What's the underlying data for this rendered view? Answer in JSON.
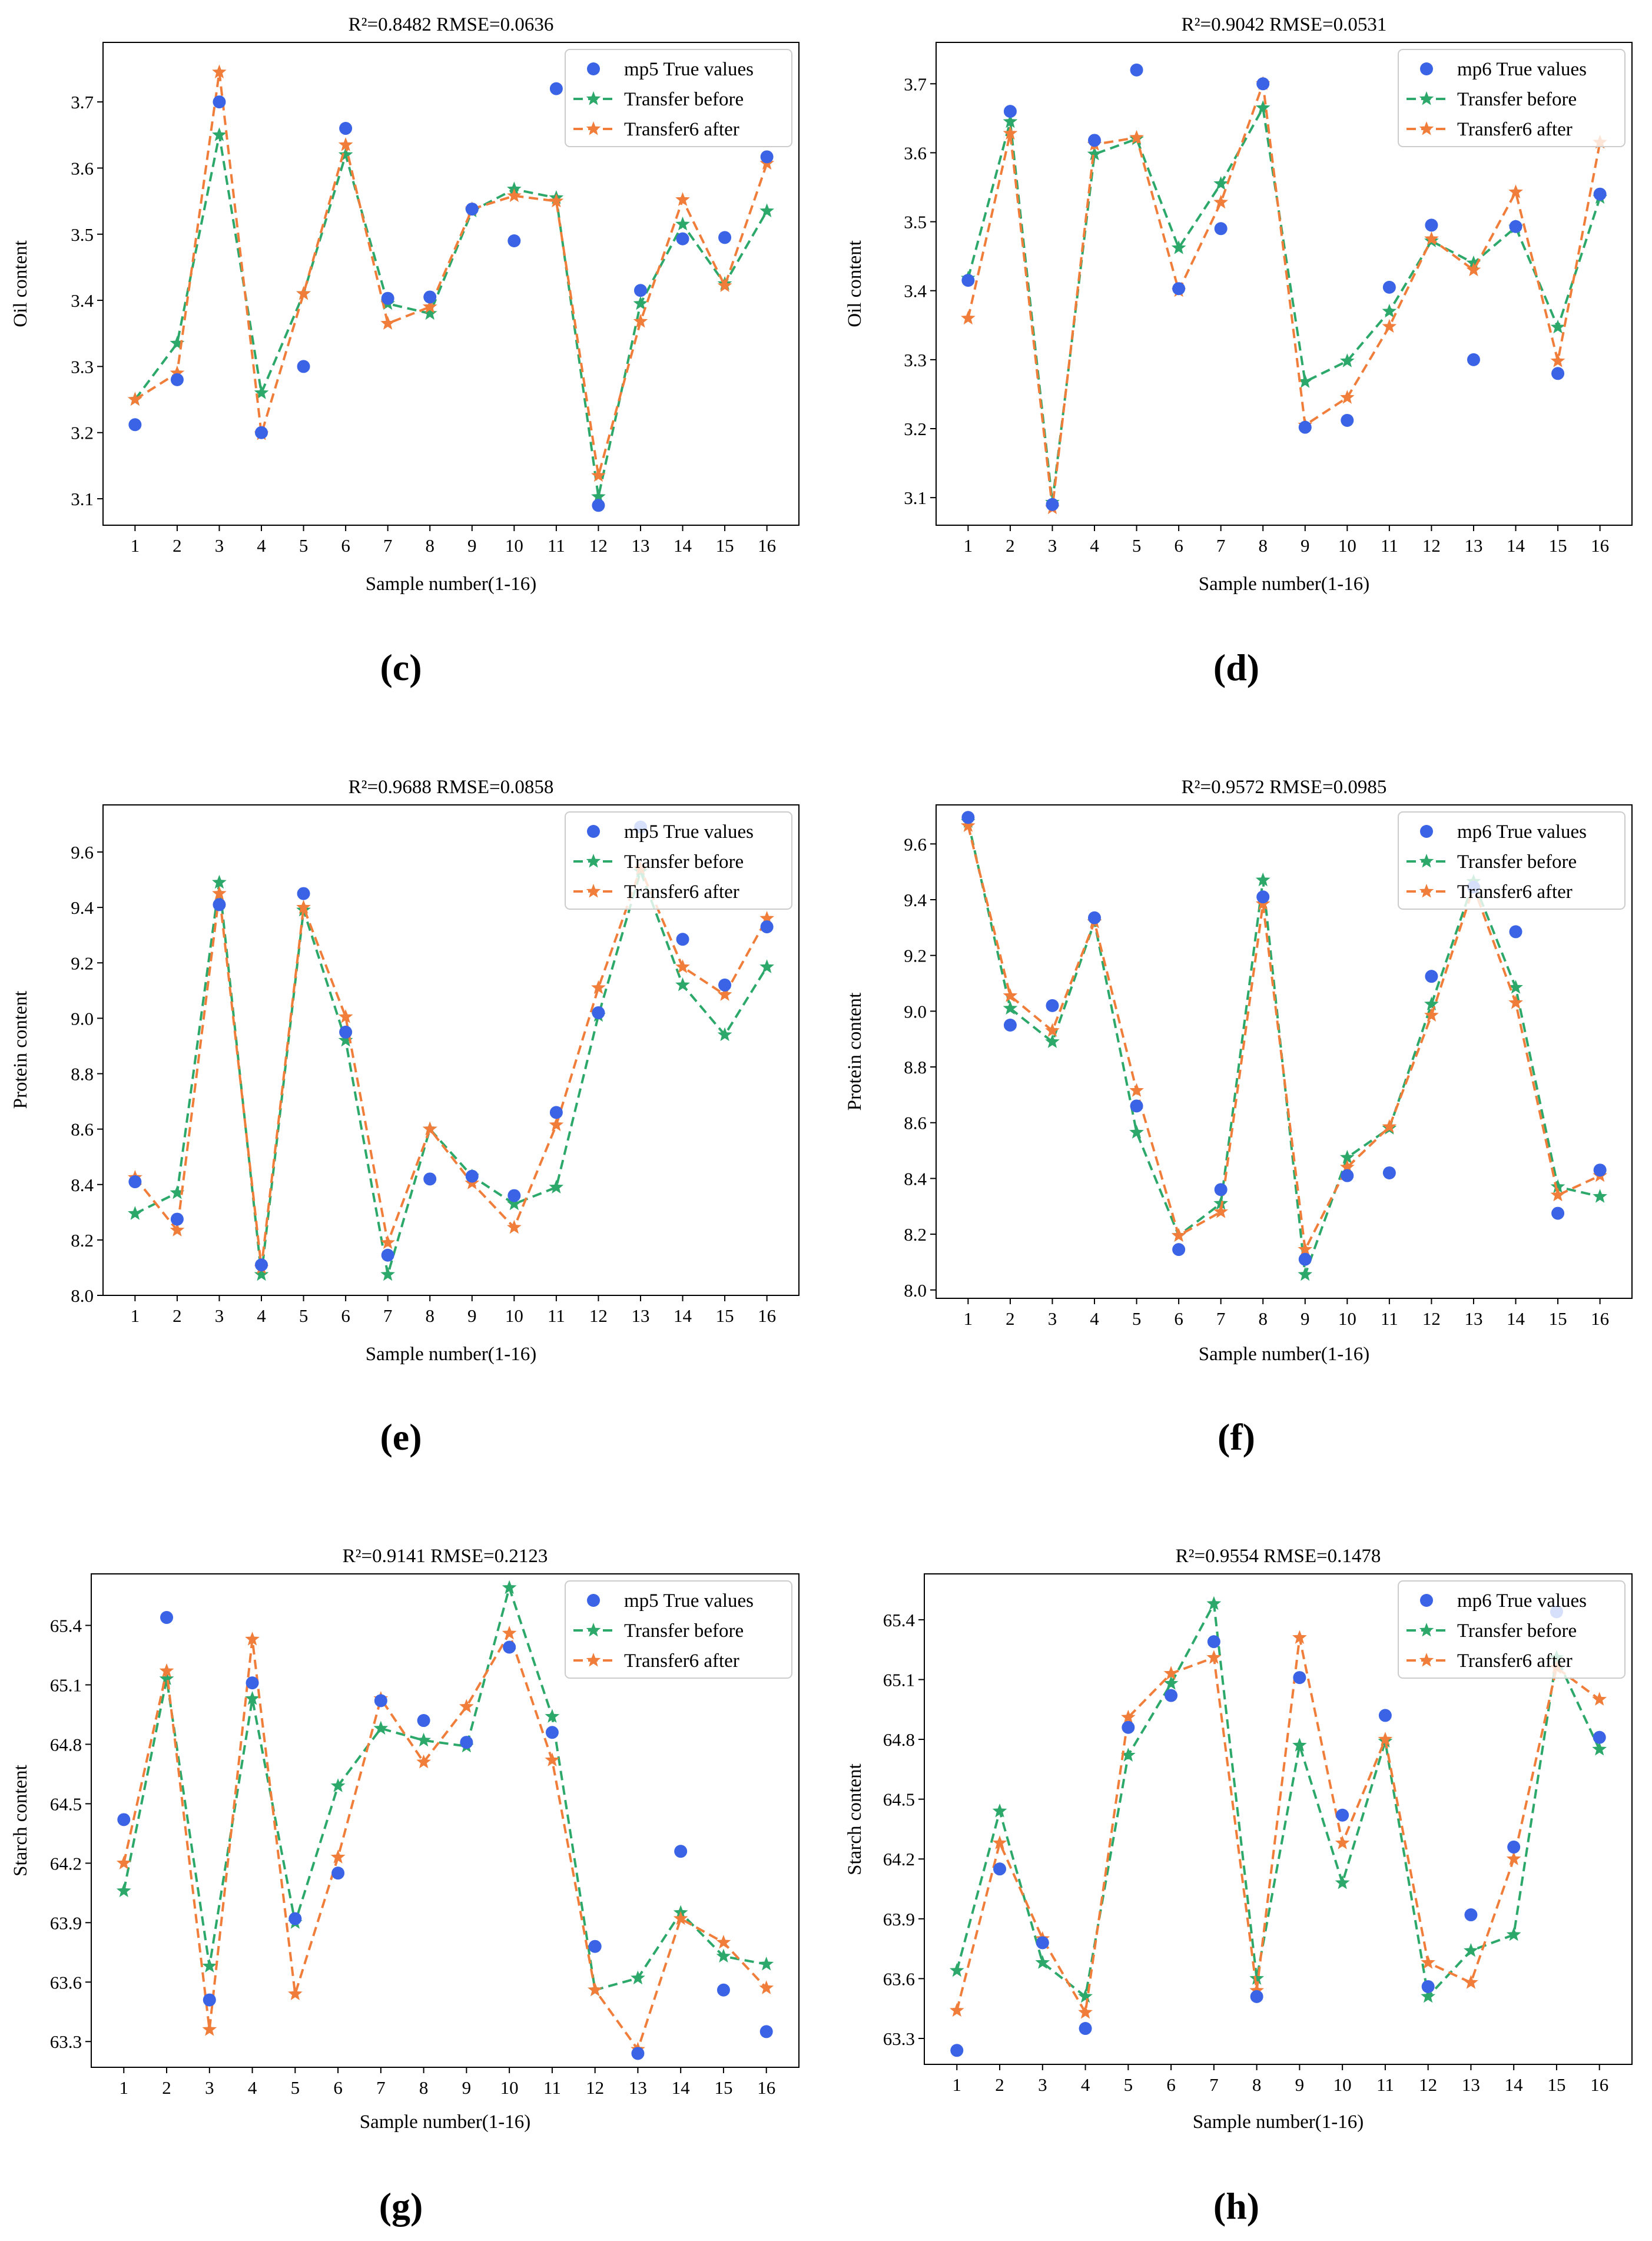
{
  "colors": {
    "true_values": "#3b63e6",
    "transfer_before": "#2ca86a",
    "transfer_after": "#f07d3a"
  },
  "chart_data": [
    {
      "panel": "(c)",
      "type": "line",
      "title": "R²=0.8482   RMSE=0.0636",
      "xlabel": "Sample number(1-16)",
      "ylabel": "Oil content",
      "x": [
        1,
        2,
        3,
        4,
        5,
        6,
        7,
        8,
        9,
        10,
        11,
        12,
        13,
        14,
        15,
        16
      ],
      "ylim": [
        3.06,
        3.79
      ],
      "yticks": [
        "3.1",
        "3.2",
        "3.3",
        "3.4",
        "3.5",
        "3.6",
        "3.7"
      ],
      "yticks_v": [
        3.1,
        3.2,
        3.3,
        3.4,
        3.5,
        3.6,
        3.7
      ],
      "legend": [
        "mp5 True values",
        "Transfer before",
        "Transfer6 after"
      ],
      "series": [
        {
          "name": "mp5 True values",
          "kind": "scatter",
          "values": [
            3.212,
            3.28,
            3.7,
            3.2,
            3.3,
            3.66,
            3.403,
            3.405,
            3.538,
            3.49,
            3.72,
            3.09,
            3.415,
            3.493,
            3.495,
            3.617
          ]
        },
        {
          "name": "Transfer before",
          "kind": "line",
          "values": [
            3.25,
            3.335,
            3.65,
            3.26,
            3.41,
            3.62,
            3.395,
            3.38,
            3.535,
            3.568,
            3.555,
            3.103,
            3.395,
            3.515,
            3.425,
            3.535
          ]
        },
        {
          "name": "Transfer6 after",
          "kind": "line",
          "values": [
            3.25,
            3.29,
            3.745,
            3.198,
            3.41,
            3.635,
            3.365,
            3.39,
            3.538,
            3.558,
            3.55,
            3.135,
            3.368,
            3.552,
            3.422,
            3.607
          ]
        }
      ]
    },
    {
      "panel": "(d)",
      "type": "line",
      "title": "R²=0.9042   RMSE=0.0531",
      "xlabel": "Sample number(1-16)",
      "ylabel": "Oil content",
      "x": [
        1,
        2,
        3,
        4,
        5,
        6,
        7,
        8,
        9,
        10,
        11,
        12,
        13,
        14,
        15,
        16
      ],
      "ylim": [
        3.06,
        3.76
      ],
      "yticks": [
        "3.1",
        "3.2",
        "3.3",
        "3.4",
        "3.5",
        "3.6",
        "3.7"
      ],
      "yticks_v": [
        3.1,
        3.2,
        3.3,
        3.4,
        3.5,
        3.6,
        3.7
      ],
      "legend": [
        "mp6 True values",
        "Transfer before",
        "Transfer6 after"
      ],
      "series": [
        {
          "name": "mp6 True values",
          "kind": "scatter",
          "values": [
            3.415,
            3.66,
            3.09,
            3.618,
            3.72,
            3.403,
            3.49,
            3.7,
            3.202,
            3.212,
            3.405,
            3.495,
            3.3,
            3.493,
            3.28,
            3.54
          ]
        },
        {
          "name": "Transfer before",
          "kind": "line",
          "values": [
            3.418,
            3.645,
            3.093,
            3.598,
            3.62,
            3.462,
            3.555,
            3.665,
            3.268,
            3.298,
            3.37,
            3.472,
            3.44,
            3.492,
            3.347,
            3.535
          ]
        },
        {
          "name": "Transfer6 after",
          "kind": "line",
          "values": [
            3.36,
            3.628,
            3.085,
            3.612,
            3.622,
            3.4,
            3.528,
            3.7,
            3.205,
            3.245,
            3.348,
            3.475,
            3.43,
            3.543,
            3.298,
            3.615
          ]
        }
      ]
    },
    {
      "panel": "(e)",
      "type": "line",
      "title": "R²=0.9688   RMSE=0.0858",
      "xlabel": "Sample number(1-16)",
      "ylabel": "Protein content",
      "x": [
        1,
        2,
        3,
        4,
        5,
        6,
        7,
        8,
        9,
        10,
        11,
        12,
        13,
        14,
        15,
        16
      ],
      "ylim": [
        8.0,
        9.77
      ],
      "yticks": [
        "8.0",
        "8.2",
        "8.4",
        "8.6",
        "8.8",
        "9.0",
        "9.2",
        "9.4",
        "9.6"
      ],
      "yticks_v": [
        8.0,
        8.2,
        8.4,
        8.6,
        8.8,
        9.0,
        9.2,
        9.4,
        9.6
      ],
      "legend": [
        "mp5 True values",
        "Transfer before",
        "Transfer6 after"
      ],
      "series": [
        {
          "name": "mp5 True values",
          "kind": "scatter",
          "values": [
            8.41,
            8.275,
            9.41,
            8.11,
            9.45,
            8.95,
            8.145,
            8.42,
            8.43,
            8.36,
            8.66,
            9.02,
            9.69,
            9.285,
            9.12,
            9.33
          ]
        },
        {
          "name": "Transfer before",
          "kind": "line",
          "values": [
            8.295,
            8.37,
            9.49,
            8.075,
            9.39,
            8.92,
            8.075,
            8.6,
            8.43,
            8.33,
            8.39,
            9.01,
            9.53,
            9.12,
            8.94,
            9.185
          ]
        },
        {
          "name": "Transfer6 after",
          "kind": "line",
          "values": [
            8.425,
            8.235,
            9.45,
            8.1,
            9.4,
            9.005,
            8.19,
            8.6,
            8.405,
            8.245,
            8.615,
            9.11,
            9.54,
            9.185,
            9.085,
            9.36
          ]
        }
      ]
    },
    {
      "panel": "(f)",
      "type": "line",
      "title": "R²=0.9572   RMSE=0.0985",
      "xlabel": "Sample number(1-16)",
      "ylabel": "Protein content",
      "x": [
        1,
        2,
        3,
        4,
        5,
        6,
        7,
        8,
        9,
        10,
        11,
        12,
        13,
        14,
        15,
        16
      ],
      "ylim": [
        7.97,
        9.74
      ],
      "yticks": [
        "8.0",
        "8.2",
        "8.4",
        "8.6",
        "8.8",
        "9.0",
        "9.2",
        "9.4",
        "9.6"
      ],
      "yticks_v": [
        8.0,
        8.2,
        8.4,
        8.6,
        8.8,
        9.0,
        9.2,
        9.4,
        9.6
      ],
      "legend": [
        "mp6 True values",
        "Transfer before",
        "Transfer6 after"
      ],
      "series": [
        {
          "name": "mp6 True values",
          "kind": "scatter",
          "values": [
            9.695,
            8.95,
            9.02,
            9.335,
            8.66,
            8.145,
            8.36,
            9.41,
            8.11,
            8.41,
            8.42,
            9.125,
            9.445,
            9.285,
            8.275,
            8.43
          ]
        },
        {
          "name": "Transfer before",
          "kind": "line",
          "values": [
            9.68,
            9.01,
            8.89,
            9.32,
            8.565,
            8.195,
            8.31,
            9.47,
            8.055,
            8.475,
            8.58,
            9.025,
            9.465,
            9.085,
            8.37,
            8.335
          ]
        },
        {
          "name": "Transfer6 after",
          "kind": "line",
          "values": [
            9.665,
            9.055,
            8.93,
            9.32,
            8.715,
            8.195,
            8.28,
            9.385,
            8.145,
            8.44,
            8.585,
            8.985,
            9.445,
            9.03,
            8.34,
            8.41
          ]
        }
      ]
    },
    {
      "panel": "(g)",
      "type": "line",
      "title": "R²=0.9141   RMSE=0.2123",
      "xlabel": "Sample number(1-16)",
      "ylabel": "Starch content",
      "x": [
        1,
        2,
        3,
        4,
        5,
        6,
        7,
        8,
        9,
        10,
        11,
        12,
        13,
        14,
        15,
        16
      ],
      "ylim": [
        63.17,
        65.66
      ],
      "yticks": [
        "63.3",
        "63.6",
        "63.9",
        "64.2",
        "64.5",
        "64.8",
        "65.1",
        "65.4"
      ],
      "yticks_v": [
        63.3,
        63.6,
        63.9,
        64.2,
        64.5,
        64.8,
        65.1,
        65.4
      ],
      "legend": [
        "mp5 True values",
        "Transfer before",
        "Transfer6 after"
      ],
      "series": [
        {
          "name": "mp5 True values",
          "kind": "scatter",
          "values": [
            64.42,
            65.44,
            63.51,
            65.11,
            63.92,
            64.15,
            65.02,
            64.92,
            64.81,
            65.29,
            64.86,
            63.78,
            63.24,
            64.26,
            63.56,
            63.35
          ]
        },
        {
          "name": "Transfer before",
          "kind": "line",
          "values": [
            64.06,
            65.13,
            63.68,
            65.03,
            63.9,
            64.59,
            64.88,
            64.82,
            64.79,
            65.59,
            64.94,
            63.56,
            63.62,
            63.95,
            63.73,
            63.69
          ]
        },
        {
          "name": "Transfer6 after",
          "kind": "line",
          "values": [
            64.2,
            65.17,
            63.36,
            65.33,
            63.54,
            64.23,
            65.03,
            64.71,
            64.99,
            65.36,
            64.72,
            63.56,
            63.26,
            63.92,
            63.8,
            63.57
          ]
        }
      ]
    },
    {
      "panel": "(h)",
      "type": "line",
      "title": "R²=0.9554   RMSE=0.1478",
      "xlabel": "Sample number(1-16)",
      "ylabel": "Starch content",
      "x": [
        1,
        2,
        3,
        4,
        5,
        6,
        7,
        8,
        9,
        10,
        11,
        12,
        13,
        14,
        15,
        16
      ],
      "ylim": [
        63.17,
        65.63
      ],
      "yticks": [
        "63.3",
        "63.6",
        "63.9",
        "64.2",
        "64.5",
        "64.8",
        "65.1",
        "65.4"
      ],
      "yticks_v": [
        63.3,
        63.6,
        63.9,
        64.2,
        64.5,
        64.8,
        65.1,
        65.4
      ],
      "legend": [
        "mp6 True values",
        "Transfer before",
        "Transfer6 after"
      ],
      "series": [
        {
          "name": "mp6 True values",
          "kind": "scatter",
          "values": [
            63.24,
            64.15,
            63.78,
            63.35,
            64.86,
            65.02,
            65.29,
            63.51,
            65.11,
            64.42,
            64.92,
            63.56,
            63.92,
            64.26,
            65.44,
            64.81
          ]
        },
        {
          "name": "Transfer before",
          "kind": "line",
          "values": [
            63.64,
            64.44,
            63.68,
            63.51,
            64.72,
            65.08,
            65.48,
            63.6,
            64.77,
            64.08,
            64.79,
            63.51,
            63.74,
            63.82,
            65.21,
            64.75
          ]
        },
        {
          "name": "Transfer6 after",
          "kind": "line",
          "values": [
            63.44,
            64.28,
            63.8,
            63.43,
            64.91,
            65.13,
            65.21,
            63.54,
            65.31,
            64.28,
            64.8,
            63.68,
            63.58,
            64.2,
            65.16,
            65.0
          ]
        }
      ]
    }
  ]
}
